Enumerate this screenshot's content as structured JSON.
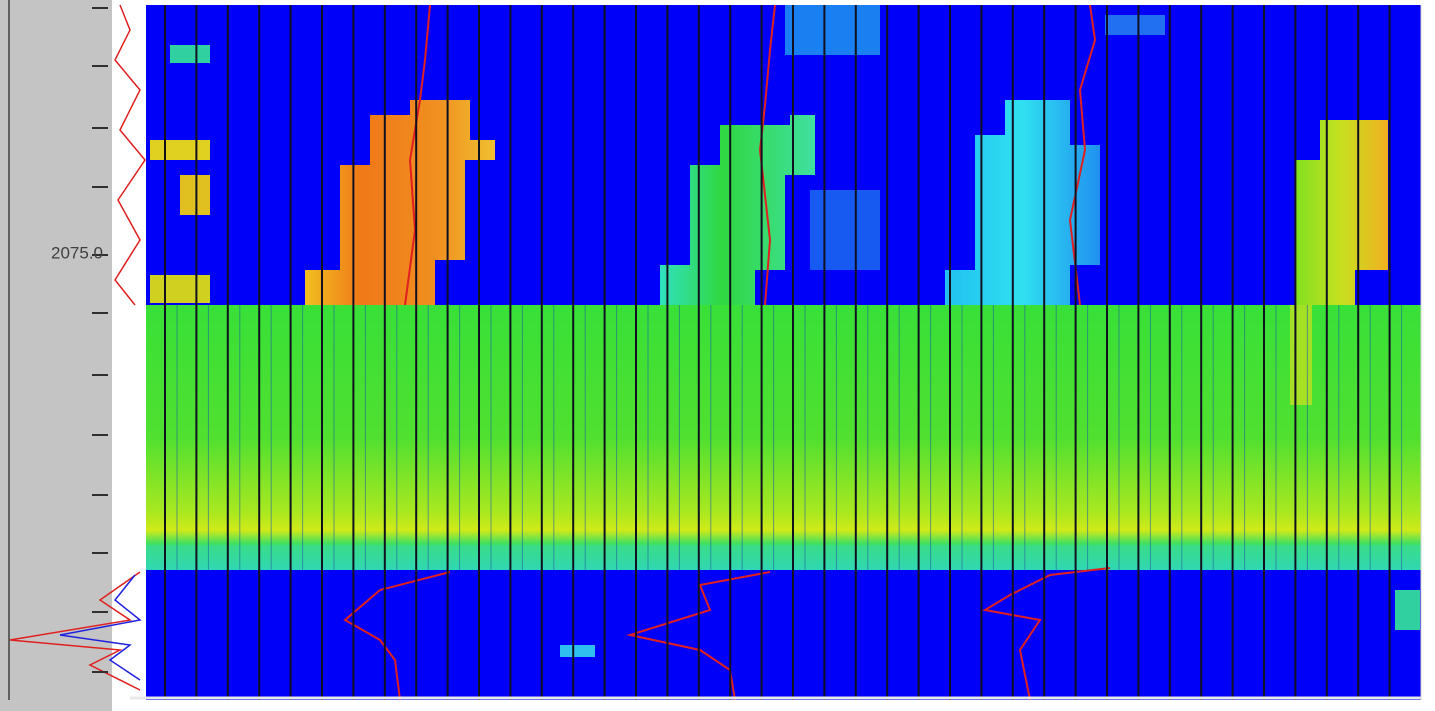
{
  "depth_label": "2075.0"
}
